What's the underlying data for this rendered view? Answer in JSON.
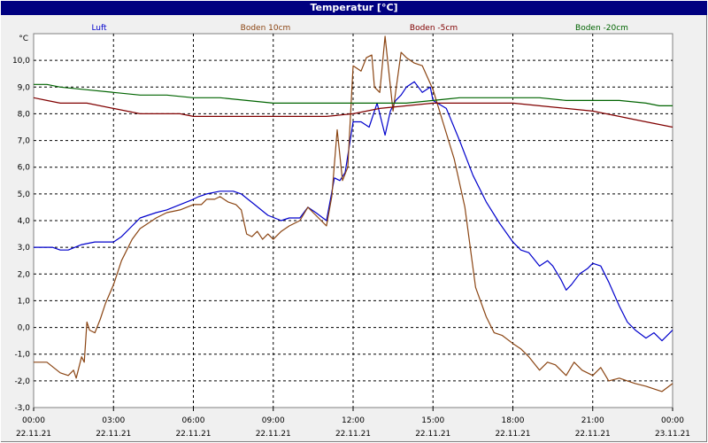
{
  "window": {
    "title": "Temperatur [°C]"
  },
  "chart_data": {
    "type": "line",
    "title": "Temperatur [°C]",
    "ylabel": "°C",
    "xlabel": "",
    "ylim": [
      -3.0,
      11.0
    ],
    "xlim": [
      0,
      24
    ],
    "grid": true,
    "legend_position": "top",
    "y_ticks": [
      "-3,0",
      "-2,0",
      "-1,0",
      "0,0",
      "1,0",
      "2,0",
      "3,0",
      "4,0",
      "5,0",
      "6,0",
      "7,0",
      "8,0",
      "9,0",
      "10,0"
    ],
    "y_tick_values": [
      -3,
      -2,
      -1,
      0,
      1,
      2,
      3,
      4,
      5,
      6,
      7,
      8,
      9,
      10
    ],
    "x_ticks": [
      {
        "time": "00:00",
        "date": "22.11.21",
        "h": 0
      },
      {
        "time": "03:00",
        "date": "22.11.21",
        "h": 3
      },
      {
        "time": "06:00",
        "date": "22.11.21",
        "h": 6
      },
      {
        "time": "09:00",
        "date": "22.11.21",
        "h": 9
      },
      {
        "time": "12:00",
        "date": "22.11.21",
        "h": 12
      },
      {
        "time": "15:00",
        "date": "22.11.21",
        "h": 15
      },
      {
        "time": "18:00",
        "date": "22.11.21",
        "h": 18
      },
      {
        "time": "21:00",
        "date": "22.11.21",
        "h": 21
      },
      {
        "time": "00:00",
        "date": "23.11.21",
        "h": 24
      }
    ],
    "series": [
      {
        "name": "Luft",
        "color": "#0000cc",
        "x": [
          0,
          0.7,
          1.0,
          1.3,
          1.8,
          2.3,
          3.0,
          3.3,
          3.7,
          4.0,
          4.6,
          5.0,
          5.5,
          6.0,
          6.2,
          6.5,
          7.0,
          7.5,
          7.8,
          8.3,
          8.8,
          9.3,
          9.6,
          10.0,
          10.3,
          10.6,
          11.0,
          11.3,
          11.5,
          11.7,
          12.0,
          12.3,
          12.6,
          12.9,
          13.2,
          13.4,
          13.6,
          13.8,
          14.0,
          14.3,
          14.6,
          14.9,
          15.0,
          15.5,
          16.0,
          16.5,
          17.0,
          17.5,
          18.0,
          18.3,
          18.6,
          19.0,
          19.3,
          19.5,
          19.8,
          20.0,
          20.2,
          20.5,
          20.8,
          21.0,
          21.3,
          21.6,
          22.0,
          22.3,
          22.6,
          23.0,
          23.3,
          23.6,
          24.0
        ],
        "y": [
          3.0,
          3.0,
          2.9,
          2.9,
          3.1,
          3.2,
          3.2,
          3.4,
          3.8,
          4.1,
          4.3,
          4.4,
          4.6,
          4.8,
          4.9,
          5.0,
          5.1,
          5.1,
          5.0,
          4.6,
          4.2,
          4.0,
          4.1,
          4.1,
          4.5,
          4.3,
          4.0,
          5.6,
          5.5,
          5.8,
          7.7,
          7.7,
          7.5,
          8.4,
          7.2,
          8.1,
          8.5,
          8.7,
          9.0,
          9.2,
          8.8,
          9.0,
          8.5,
          8.2,
          7.0,
          5.7,
          4.7,
          3.9,
          3.2,
          2.9,
          2.8,
          2.3,
          2.5,
          2.3,
          1.8,
          1.4,
          1.6,
          2.0,
          2.2,
          2.4,
          2.3,
          1.7,
          0.8,
          0.2,
          -0.1,
          -0.4,
          -0.2,
          -0.5,
          -0.1
        ]
      },
      {
        "name": "Boden 10cm",
        "color": "#8b4513",
        "x": [
          0,
          0.5,
          1.0,
          1.3,
          1.5,
          1.6,
          1.8,
          1.9,
          2.0,
          2.1,
          2.3,
          2.5,
          2.7,
          3.0,
          3.3,
          3.7,
          4.0,
          4.3,
          4.6,
          5.0,
          5.5,
          6.0,
          6.3,
          6.5,
          6.8,
          7.0,
          7.3,
          7.6,
          7.8,
          8.0,
          8.2,
          8.4,
          8.6,
          8.8,
          9.0,
          9.3,
          9.6,
          10.0,
          10.3,
          10.5,
          10.8,
          11.0,
          11.2,
          11.4,
          11.6,
          11.8,
          12.0,
          12.3,
          12.5,
          12.7,
          12.8,
          13.0,
          13.2,
          13.5,
          13.8,
          14.0,
          14.3,
          14.6,
          15.0,
          15.4,
          15.8,
          16.2,
          16.6,
          17.0,
          17.3,
          17.6,
          18.0,
          18.3,
          18.6,
          19.0,
          19.3,
          19.6,
          20.0,
          20.3,
          20.6,
          21.0,
          21.3,
          21.6,
          22.0,
          22.3,
          22.6,
          23.0,
          23.3,
          23.6,
          24.0
        ],
        "y": [
          -1.3,
          -1.3,
          -1.7,
          -1.8,
          -1.6,
          -1.9,
          -1.1,
          -1.3,
          0.2,
          -0.1,
          -0.2,
          0.3,
          0.9,
          1.6,
          2.5,
          3.3,
          3.7,
          3.9,
          4.1,
          4.3,
          4.4,
          4.6,
          4.6,
          4.8,
          4.8,
          4.9,
          4.7,
          4.6,
          4.4,
          3.5,
          3.4,
          3.6,
          3.3,
          3.5,
          3.3,
          3.6,
          3.8,
          4.0,
          4.5,
          4.3,
          4.0,
          3.8,
          4.9,
          7.4,
          5.5,
          6.0,
          9.8,
          9.6,
          10.1,
          10.2,
          9.0,
          8.8,
          10.9,
          8.1,
          10.3,
          10.1,
          9.9,
          9.8,
          8.9,
          7.6,
          6.3,
          4.5,
          1.5,
          0.4,
          -0.2,
          -0.3,
          -0.6,
          -0.8,
          -1.1,
          -1.6,
          -1.3,
          -1.4,
          -1.8,
          -1.3,
          -1.6,
          -1.8,
          -1.5,
          -2.0,
          -1.9,
          -2.0,
          -2.1,
          -2.2,
          -2.3,
          -2.4,
          -2.1
        ]
      },
      {
        "name": "Boden -5cm",
        "color": "#800000",
        "x": [
          0,
          0.5,
          1.0,
          2.0,
          3.0,
          4.0,
          5.0,
          5.5,
          6.0,
          8.0,
          10.0,
          11.0,
          12.0,
          13.0,
          14.0,
          15.0,
          16.0,
          17.0,
          18.0,
          19.0,
          20.0,
          21.0,
          21.5,
          22.0,
          22.5,
          23.0,
          23.5,
          24.0
        ],
        "y": [
          8.6,
          8.5,
          8.4,
          8.4,
          8.2,
          8.0,
          8.0,
          8.0,
          7.9,
          7.9,
          7.9,
          7.9,
          8.0,
          8.2,
          8.3,
          8.4,
          8.4,
          8.4,
          8.4,
          8.3,
          8.2,
          8.1,
          8.0,
          7.9,
          7.8,
          7.7,
          7.6,
          7.5
        ]
      },
      {
        "name": "Boden -20cm",
        "color": "#006400",
        "x": [
          0,
          0.5,
          1.0,
          2.0,
          3.0,
          4.0,
          5.0,
          6.0,
          7.0,
          8.0,
          9.0,
          10.0,
          11.0,
          12.0,
          13.0,
          14.0,
          15.0,
          16.0,
          17.0,
          18.0,
          19.0,
          20.0,
          21.0,
          22.0,
          23.0,
          23.5,
          24.0
        ],
        "y": [
          9.1,
          9.1,
          9.0,
          8.9,
          8.8,
          8.7,
          8.7,
          8.6,
          8.6,
          8.5,
          8.4,
          8.4,
          8.4,
          8.4,
          8.4,
          8.4,
          8.5,
          8.6,
          8.6,
          8.6,
          8.6,
          8.5,
          8.5,
          8.5,
          8.4,
          8.3,
          8.3
        ]
      }
    ]
  }
}
